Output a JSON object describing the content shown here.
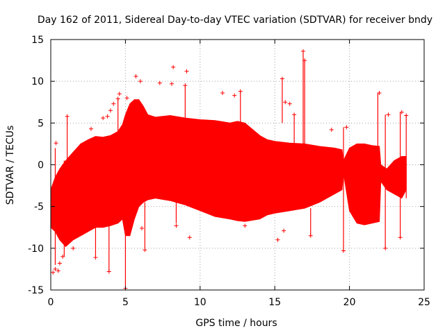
{
  "chart_data": {
    "type": "scatter",
    "title": "Day 162 of 2011, Sidereal Day-to-day VTEC variation (SDTVAR) for receiver bndy",
    "xlabel": "GPS time / hours",
    "ylabel": "SDTVAR / TECUs",
    "xlim": [
      0,
      25
    ],
    "ylim": [
      -15,
      15
    ],
    "xticks": [
      0,
      5,
      10,
      15,
      20,
      25
    ],
    "yticks": [
      -15,
      -10,
      -5,
      0,
      5,
      10,
      15
    ],
    "xtick_labels": [
      "0",
      "5",
      "10",
      "15",
      "20",
      "25"
    ],
    "ytick_labels": [
      "-15",
      "-10",
      "-5",
      "0",
      "5",
      "10",
      "15"
    ],
    "grid": true,
    "marker": "plus",
    "colors": {
      "series": "#ff0000",
      "grid": "#a0a0a0",
      "axis": "#000000"
    },
    "envelope": {
      "x": [
        0.0,
        0.3,
        0.6,
        1.0,
        1.5,
        2.0,
        2.5,
        3.0,
        3.5,
        4.0,
        4.5,
        4.8,
        5.0,
        5.3,
        5.6,
        5.9,
        6.2,
        6.5,
        7.0,
        8.0,
        9.0,
        10.0,
        11.0,
        12.0,
        12.5,
        13.0,
        14.0,
        14.5,
        15.0,
        16.0,
        17.0,
        18.0,
        19.0,
        19.5,
        19.6,
        20.0,
        20.5,
        21.0,
        21.5,
        22.0,
        22.1,
        22.5,
        23.0,
        23.5,
        23.8
      ],
      "upper": [
        -3.0,
        -1.5,
        -0.5,
        0.5,
        1.5,
        2.5,
        3.0,
        3.4,
        3.3,
        3.5,
        4.0,
        4.8,
        6.0,
        7.3,
        7.8,
        7.8,
        7.0,
        6.0,
        5.7,
        5.9,
        5.6,
        5.4,
        5.3,
        5.0,
        5.2,
        5.0,
        3.5,
        3.0,
        2.8,
        2.6,
        2.5,
        2.2,
        2.0,
        1.8,
        0.5,
        2.0,
        2.5,
        2.5,
        2.3,
        2.2,
        0.0,
        -0.5,
        0.5,
        1.0,
        1.0
      ],
      "lower": [
        -7.5,
        -8.0,
        -9.0,
        -9.8,
        -9.0,
        -8.5,
        -8.0,
        -7.5,
        -7.5,
        -7.3,
        -7.0,
        -6.5,
        -8.5,
        -8.5,
        -6.5,
        -5.0,
        -4.5,
        -4.2,
        -4.0,
        -4.3,
        -4.8,
        -5.5,
        -6.2,
        -6.5,
        -6.7,
        -6.8,
        -6.5,
        -6.0,
        -5.8,
        -5.5,
        -5.2,
        -4.5,
        -3.5,
        -3.0,
        -1.0,
        -5.5,
        -7.0,
        -7.2,
        -7.0,
        -6.8,
        -2.0,
        -3.0,
        -3.5,
        -4.0,
        -3.0
      ]
    },
    "spikes": [
      {
        "x": 0.15,
        "y": -12.9
      },
      {
        "x": 0.3,
        "y": -12.5
      },
      {
        "x": 0.35,
        "y": 2.6
      },
      {
        "x": 0.5,
        "y": -12.7
      },
      {
        "x": 0.6,
        "y": -11.8
      },
      {
        "x": 0.8,
        "y": -11.0
      },
      {
        "x": 1.1,
        "y": 5.8
      },
      {
        "x": 1.5,
        "y": -10.0
      },
      {
        "x": 2.7,
        "y": 4.3
      },
      {
        "x": 3.0,
        "y": -11.1
      },
      {
        "x": 3.5,
        "y": 5.6
      },
      {
        "x": 3.9,
        "y": -12.8
      },
      {
        "x": 3.8,
        "y": 5.8
      },
      {
        "x": 4.0,
        "y": 6.5
      },
      {
        "x": 4.2,
        "y": 7.3
      },
      {
        "x": 4.5,
        "y": 7.9
      },
      {
        "x": 4.6,
        "y": 8.5
      },
      {
        "x": 5.0,
        "y": -14.8
      },
      {
        "x": 5.1,
        "y": 8.0
      },
      {
        "x": 5.7,
        "y": 10.6
      },
      {
        "x": 6.0,
        "y": 10.0
      },
      {
        "x": 6.1,
        "y": -7.6
      },
      {
        "x": 6.3,
        "y": -10.2
      },
      {
        "x": 7.3,
        "y": 9.8
      },
      {
        "x": 8.1,
        "y": 9.7
      },
      {
        "x": 8.2,
        "y": 11.7
      },
      {
        "x": 8.4,
        "y": -7.3
      },
      {
        "x": 9.0,
        "y": 9.5
      },
      {
        "x": 9.1,
        "y": 11.2
      },
      {
        "x": 9.3,
        "y": -8.7
      },
      {
        "x": 11.5,
        "y": 8.6
      },
      {
        "x": 12.3,
        "y": 8.3
      },
      {
        "x": 12.7,
        "y": 8.8
      },
      {
        "x": 13.0,
        "y": -7.3
      },
      {
        "x": 15.2,
        "y": -9.0
      },
      {
        "x": 15.5,
        "y": 10.3
      },
      {
        "x": 15.6,
        "y": -7.9
      },
      {
        "x": 15.7,
        "y": 7.5
      },
      {
        "x": 16.0,
        "y": 7.3
      },
      {
        "x": 16.3,
        "y": 6.0
      },
      {
        "x": 16.9,
        "y": 13.6
      },
      {
        "x": 17.0,
        "y": 12.5
      },
      {
        "x": 17.4,
        "y": -8.5
      },
      {
        "x": 18.8,
        "y": 4.2
      },
      {
        "x": 19.6,
        "y": -10.3
      },
      {
        "x": 19.8,
        "y": 4.5
      },
      {
        "x": 22.0,
        "y": 8.6
      },
      {
        "x": 22.4,
        "y": -10.0
      },
      {
        "x": 22.6,
        "y": 6.0
      },
      {
        "x": 23.4,
        "y": -8.7
      },
      {
        "x": 23.5,
        "y": 6.3
      },
      {
        "x": 23.8,
        "y": 5.9
      }
    ],
    "verticals": [
      {
        "x": 0.3,
        "from": -12.0,
        "to": 2.0
      },
      {
        "x": 0.9,
        "from": -11.0,
        "to": 0.5
      },
      {
        "x": 1.1,
        "from": -9.5,
        "to": 5.8
      },
      {
        "x": 3.0,
        "from": -11.0,
        "to": -7.0
      },
      {
        "x": 3.9,
        "from": -12.8,
        "to": -7.0
      },
      {
        "x": 4.5,
        "from": 4.0,
        "to": 8.0
      },
      {
        "x": 5.0,
        "from": -14.5,
        "to": -8.5
      },
      {
        "x": 6.3,
        "from": -10.0,
        "to": -4.5
      },
      {
        "x": 8.4,
        "from": -7.0,
        "to": -4.3
      },
      {
        "x": 9.0,
        "from": 5.6,
        "to": 9.5
      },
      {
        "x": 12.7,
        "from": 5.0,
        "to": 8.8
      },
      {
        "x": 15.5,
        "from": 5.0,
        "to": 10.3
      },
      {
        "x": 16.3,
        "from": 2.6,
        "to": 6.0
      },
      {
        "x": 16.9,
        "from": 2.5,
        "to": 13.6
      },
      {
        "x": 17.0,
        "from": 2.5,
        "to": 12.5
      },
      {
        "x": 17.4,
        "from": -8.5,
        "to": -5.2
      },
      {
        "x": 19.6,
        "from": -10.3,
        "to": 4.5
      },
      {
        "x": 21.9,
        "from": -6.8,
        "to": 8.6
      },
      {
        "x": 22.4,
        "from": -10.0,
        "to": 6.0
      },
      {
        "x": 23.4,
        "from": -8.7,
        "to": 6.3
      },
      {
        "x": 23.8,
        "from": -4.0,
        "to": 5.9
      }
    ]
  }
}
